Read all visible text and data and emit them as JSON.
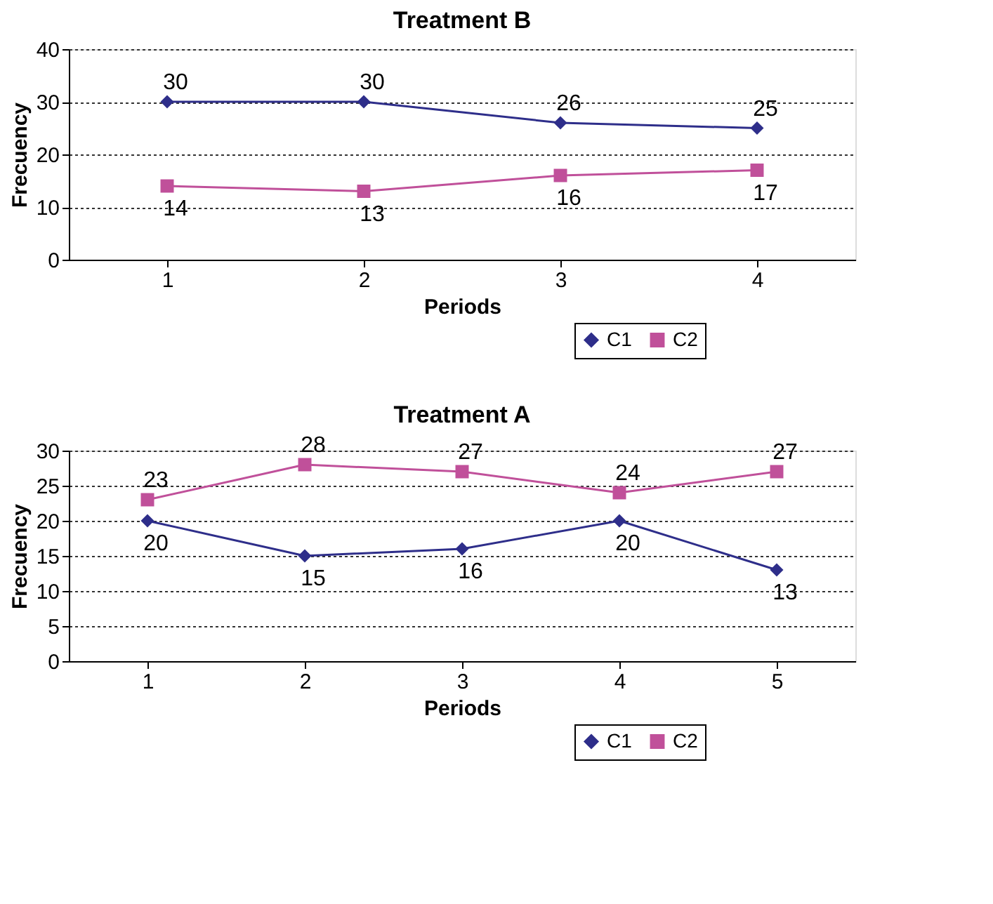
{
  "chart_data": [
    {
      "type": "line",
      "title": "Treatment B",
      "xlabel": "Periods",
      "ylabel": "Frecuency",
      "categories": [
        "1",
        "2",
        "3",
        "4"
      ],
      "ylim": [
        0,
        40
      ],
      "yticks": [
        0,
        10,
        20,
        30,
        40
      ],
      "grid": "y",
      "legend": "bottom right",
      "data_labels": true,
      "line_style": "solid",
      "series": [
        {
          "name": "C1",
          "color": "#2e2e8a",
          "marker": "diamond",
          "values": [
            30,
            30,
            26,
            25
          ]
        },
        {
          "name": "C2",
          "color": "#c0509a",
          "marker": "square",
          "values": [
            14,
            13,
            16,
            17
          ]
        }
      ]
    },
    {
      "type": "line",
      "title": "Treatment A",
      "xlabel": "Periods",
      "ylabel": "Frecuency",
      "categories": [
        "1",
        "2",
        "3",
        "4",
        "5"
      ],
      "ylim": [
        0,
        30
      ],
      "yticks": [
        0,
        5,
        10,
        15,
        20,
        25,
        30
      ],
      "grid": "y",
      "legend": "bottom right",
      "data_labels": true,
      "line_style": "solid",
      "series": [
        {
          "name": "C1",
          "color": "#2e2e8a",
          "marker": "diamond",
          "values": [
            20,
            15,
            16,
            20,
            13
          ]
        },
        {
          "name": "C2",
          "color": "#c0509a",
          "marker": "square",
          "values": [
            23,
            28,
            27,
            24,
            27
          ]
        }
      ]
    }
  ]
}
